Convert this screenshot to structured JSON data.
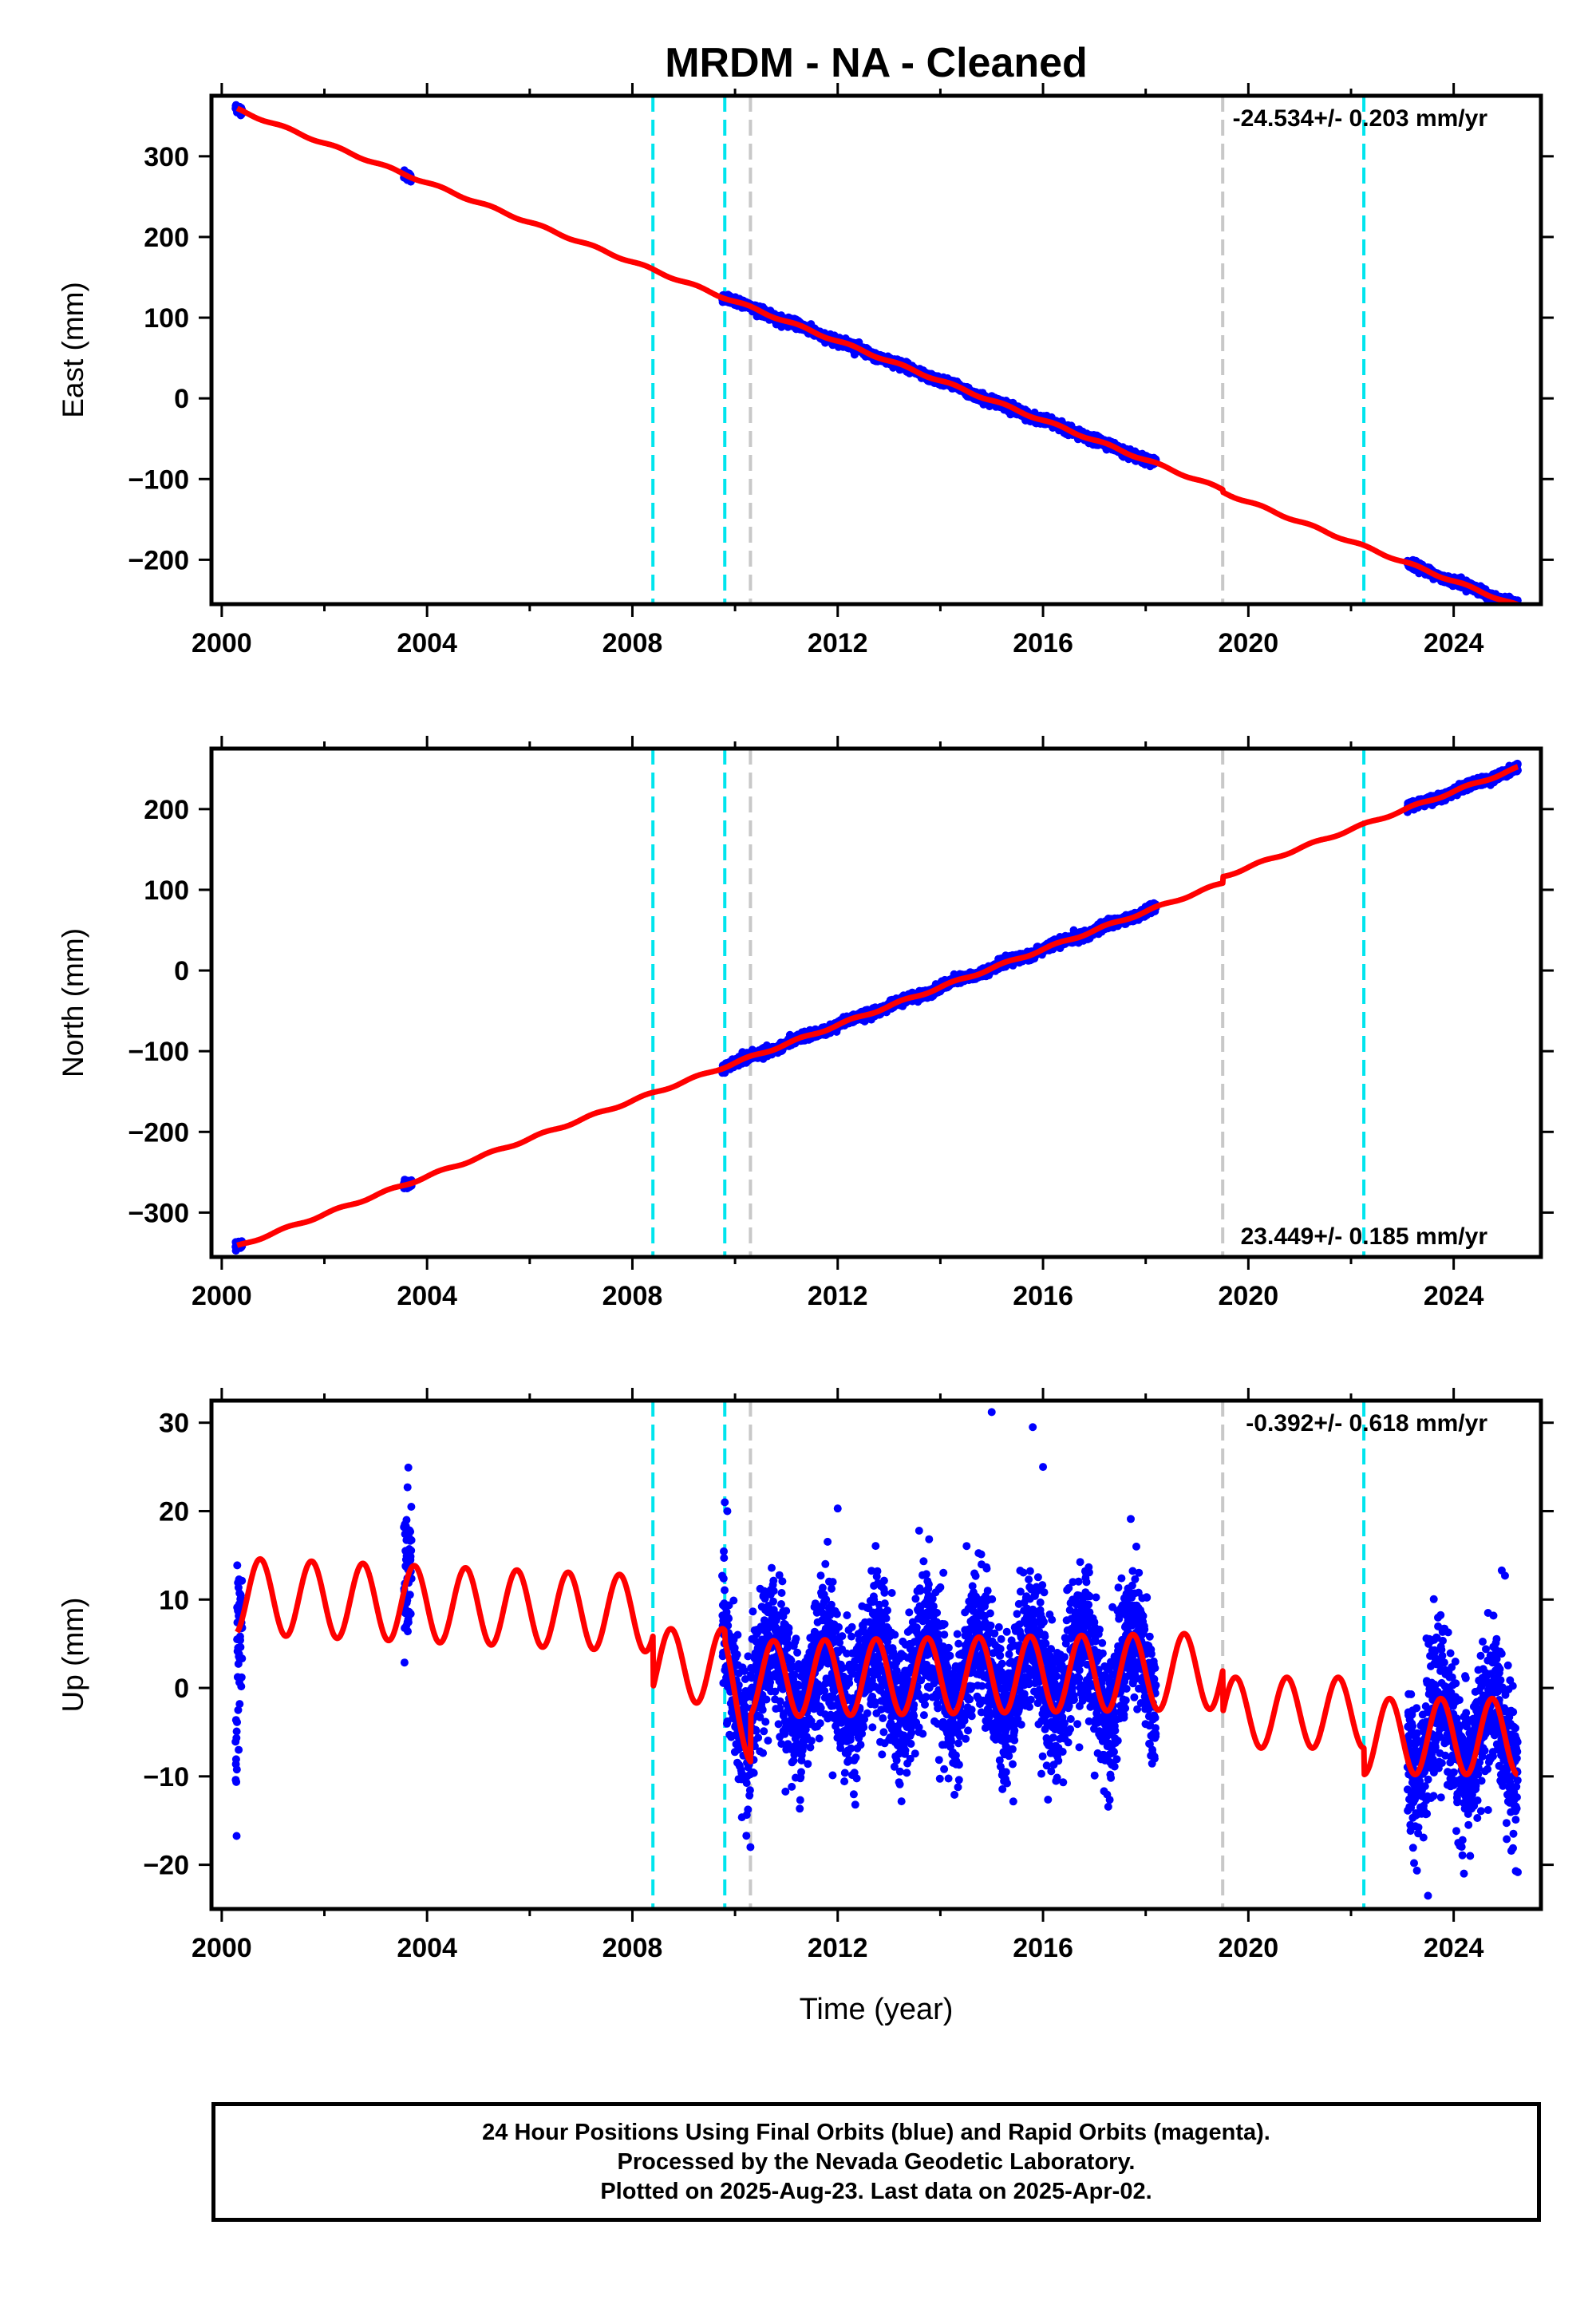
{
  "title": "MRDM  - NA - Cleaned",
  "colors": {
    "model": "#ff0000",
    "data": "#0000ff",
    "offset_cyan": "#00e5ee",
    "offset_gray": "#c8c8c8",
    "frame": "#000000"
  },
  "chart_data": [
    {
      "type": "scatter",
      "ylabel": "East (mm)",
      "xlim": [
        1999.8,
        2025.7
      ],
      "ylim": [
        -255,
        375
      ],
      "xticks": [
        2000,
        2004,
        2008,
        2012,
        2016,
        2020,
        2024
      ],
      "xtick_labels": [
        "2000",
        "2004",
        "2008",
        "2012",
        "2016",
        "2020",
        "2024"
      ],
      "yticks": [
        300,
        200,
        100,
        0,
        -100,
        -200
      ],
      "ytick_labels": [
        "300",
        "200",
        "100",
        "0",
        "−100",
        "−200"
      ],
      "rate_label": "-24.534+/- 0.203 mm/yr",
      "rate_label_position": "top-right",
      "velocity_mm_per_yr": -24.534,
      "trend_anchor": {
        "x": 2000.3,
        "y": 358
      },
      "steps": [
        {
          "x": 2019.5,
          "dy": -3
        }
      ],
      "seasonal_amplitude": 1.5,
      "data_ranges": [
        [
          2000.27,
          2000.4
        ],
        [
          2003.55,
          2003.7
        ],
        [
          2009.75,
          2018.2
        ],
        [
          2023.1,
          2025.25
        ]
      ],
      "scatter_noise": 2.5,
      "offsets_cyan": [
        2008.4,
        2009.8,
        2022.25
      ],
      "offsets_gray": [
        2010.3,
        2019.5
      ]
    },
    {
      "type": "scatter",
      "ylabel": "North (mm)",
      "xlim": [
        1999.8,
        2025.7
      ],
      "ylim": [
        -355,
        275
      ],
      "xticks": [
        2000,
        2004,
        2008,
        2012,
        2016,
        2020,
        2024
      ],
      "xtick_labels": [
        "2000",
        "2004",
        "2008",
        "2012",
        "2016",
        "2020",
        "2024"
      ],
      "yticks": [
        200,
        100,
        0,
        -100,
        -200,
        -300
      ],
      "ytick_labels": [
        "200",
        "100",
        "0",
        "−100",
        "−200",
        "−300"
      ],
      "rate_label": "23.449+/- 0.185 mm/yr",
      "rate_label_position": "bottom-right",
      "velocity_mm_per_yr": 23.449,
      "trend_anchor": {
        "x": 2000.3,
        "y": -342
      },
      "steps": [
        {
          "x": 2019.5,
          "dy": 8
        }
      ],
      "seasonal_amplitude": 1.5,
      "data_ranges": [
        [
          2000.27,
          2000.4
        ],
        [
          2003.55,
          2003.7
        ],
        [
          2009.75,
          2018.2
        ],
        [
          2023.1,
          2025.25
        ]
      ],
      "scatter_noise": 2.5,
      "offsets_cyan": [
        2008.4,
        2009.8,
        2022.25
      ],
      "offsets_gray": [
        2010.3,
        2019.5
      ]
    },
    {
      "type": "scatter",
      "ylabel": "Up (mm)",
      "xlabel": "Time (year)",
      "xlim": [
        1999.8,
        2025.7
      ],
      "ylim": [
        -25,
        32.5
      ],
      "xticks": [
        2000,
        2004,
        2008,
        2012,
        2016,
        2020,
        2024
      ],
      "xtick_labels": [
        "2000",
        "2004",
        "2008",
        "2012",
        "2016",
        "2020",
        "2024"
      ],
      "yticks": [
        30,
        20,
        10,
        0,
        -10,
        -20
      ],
      "ytick_labels": [
        "30",
        "20",
        "10",
        "0",
        "−10",
        "−20"
      ],
      "rate_label": "-0.392+/- 0.618 mm/yr",
      "rate_label_position": "top-right",
      "velocity_mm_per_yr": -0.392,
      "model_segments": [
        {
          "x0": 2000.3,
          "x1": 2008.4,
          "mean": 10.4,
          "slope": -0.25,
          "amp": 4.3,
          "phase": 0.5
        },
        {
          "x0": 2008.4,
          "x1": 2009.8,
          "mean": 2.5,
          "slope": 0,
          "amp": 4.2,
          "phase": 0.5
        },
        {
          "x0": 2009.8,
          "x1": 2010.3,
          "mean": 2.0,
          "slope": -14,
          "amp": 3.5,
          "phase": 0.5
        },
        {
          "x0": 2010.3,
          "x1": 2019.5,
          "mean": 1.0,
          "slope": 0.1,
          "amp": 4.3,
          "phase": 0.5
        },
        {
          "x0": 2019.5,
          "x1": 2022.25,
          "mean": -2.8,
          "slope": 0,
          "amp": 4.0,
          "phase": 0.5
        },
        {
          "x0": 2022.25,
          "x1": 2025.25,
          "mean": -5.5,
          "slope": 0,
          "amp": 4.3,
          "phase": 0.5
        }
      ],
      "data_ranges": [
        [
          2000.27,
          2000.4
        ],
        [
          2003.55,
          2003.7
        ],
        [
          2009.75,
          2018.2
        ],
        [
          2023.1,
          2025.25
        ]
      ],
      "scatter_noise": 4.0,
      "outliers": [
        {
          "x": 2000.3,
          "y": 5.5
        },
        {
          "x": 2000.32,
          "y": -2.5
        },
        {
          "x": 2000.33,
          "y": -7
        },
        {
          "x": 2003.62,
          "y": 22.7
        },
        {
          "x": 2003.6,
          "y": 19
        },
        {
          "x": 2003.65,
          "y": 17
        },
        {
          "x": 2009.8,
          "y": 21
        },
        {
          "x": 2009.85,
          "y": 20
        },
        {
          "x": 2012.0,
          "y": 20.3
        },
        {
          "x": 2015.0,
          "y": 31.2
        },
        {
          "x": 2015.8,
          "y": 29.5
        },
        {
          "x": 2016.0,
          "y": 25
        },
        {
          "x": 2025.0,
          "y": 12.7
        },
        {
          "x": 2023.5,
          "y": -23.5
        },
        {
          "x": 2024.2,
          "y": -21
        },
        {
          "x": 2010.3,
          "y": -18
        }
      ],
      "offsets_cyan": [
        2008.4,
        2009.8,
        2022.25
      ],
      "offsets_gray": [
        2010.3,
        2019.5
      ]
    }
  ],
  "footer": {
    "line1": "24 Hour Positions Using Final Orbits (blue) and Rapid Orbits (magenta).",
    "line2": "Processed by the Nevada Geodetic Laboratory.",
    "line3": "Plotted on 2025-Aug-23. Last data on 2025-Apr-02."
  }
}
